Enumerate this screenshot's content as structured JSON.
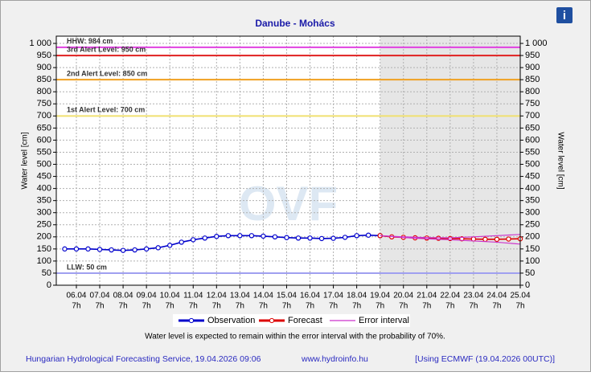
{
  "chart_data": {
    "type": "line",
    "title": "Danube - Mohács",
    "y_label": "Water level [cm]",
    "y2_label": "Water level [cm]",
    "watermark": "OVF",
    "xlim": [
      0.14,
      20
    ],
    "ylim": [
      0,
      1030
    ],
    "grid": true,
    "xtick_hour": "7h",
    "xticks": [
      {
        "value": 1,
        "label": "06.04"
      },
      {
        "value": 2,
        "label": "07.04"
      },
      {
        "value": 3,
        "label": "08.04"
      },
      {
        "value": 4,
        "label": "09.04"
      },
      {
        "value": 5,
        "label": "10.04"
      },
      {
        "value": 6,
        "label": "11.04"
      },
      {
        "value": 7,
        "label": "12.04"
      },
      {
        "value": 8,
        "label": "13.04"
      },
      {
        "value": 9,
        "label": "14.04"
      },
      {
        "value": 10,
        "label": "15.04"
      },
      {
        "value": 11,
        "label": "16.04"
      },
      {
        "value": 12,
        "label": "17.04"
      },
      {
        "value": 13,
        "label": "18.04"
      },
      {
        "value": 14,
        "label": "19.04"
      },
      {
        "value": 15,
        "label": "20.04"
      },
      {
        "value": 16,
        "label": "21.04"
      },
      {
        "value": 17,
        "label": "22.04"
      },
      {
        "value": 18,
        "label": "23.04"
      },
      {
        "value": 19,
        "label": "24.04"
      },
      {
        "value": 20,
        "label": "25.04"
      }
    ],
    "yticks": [
      0,
      50,
      100,
      150,
      200,
      250,
      300,
      350,
      400,
      450,
      500,
      550,
      600,
      650,
      700,
      750,
      800,
      850,
      900,
      950,
      {
        "value": 1000,
        "label": "1 000"
      }
    ],
    "thresholds": [
      {
        "label": "HHW: 984 cm",
        "value": 984,
        "color": "#e040e0"
      },
      {
        "label": "3rd Alert Level: 950 cm",
        "value": 950,
        "color": "#e02020"
      },
      {
        "label": "2nd Alert Level: 850 cm",
        "value": 850,
        "color": "#f0a020"
      },
      {
        "label": "1st Alert Level: 700 cm",
        "value": 700,
        "color": "#f0e070"
      },
      {
        "label": "LLW: 50 cm",
        "value": 50,
        "color": "#a0a0f0"
      }
    ],
    "series": [
      {
        "name": "Observation",
        "color": "#0000cc",
        "x": [
          0.5,
          1,
          1.5,
          2,
          2.5,
          3,
          3.5,
          4,
          4.5,
          5,
          5.5,
          6,
          6.5,
          7,
          7.5,
          8,
          8.5,
          9,
          9.5,
          10,
          10.5,
          11,
          11.5,
          12,
          12.5,
          13,
          13.5,
          14
        ],
        "values": [
          150,
          150,
          150,
          148,
          146,
          144,
          146,
          150,
          155,
          165,
          178,
          188,
          195,
          202,
          205,
          205,
          205,
          203,
          200,
          197,
          195,
          195,
          193,
          194,
          198,
          205,
          207,
          205
        ]
      },
      {
        "name": "Forecast",
        "color": "#dd0000",
        "x": [
          14,
          14.5,
          15,
          15.5,
          16,
          16.5,
          17,
          17.5,
          18,
          18.5,
          19,
          19.5,
          20
        ],
        "values": [
          205,
          200,
          198,
          196,
          195,
          194,
          193,
          192,
          191,
          190,
          190,
          191,
          192
        ]
      },
      {
        "name": "Error interval",
        "color": "#cc33cc",
        "x": [
          14,
          15,
          16,
          17,
          18,
          19,
          20
        ],
        "values": [
          205,
          200,
          197,
          196,
          200,
          205,
          210
        ],
        "lower": [
          205,
          197,
          192,
          188,
          183,
          178,
          170
        ]
      }
    ],
    "note": "Water level is expected to remain within the error interval with the probability of 70%.",
    "footer": [
      "Hungarian Hydrological Forecasting Service, 19.04.2026 09:06",
      "www.hydroinfo.hu",
      "[Using ECMWF (19.04.2026  00UTC)]"
    ]
  }
}
